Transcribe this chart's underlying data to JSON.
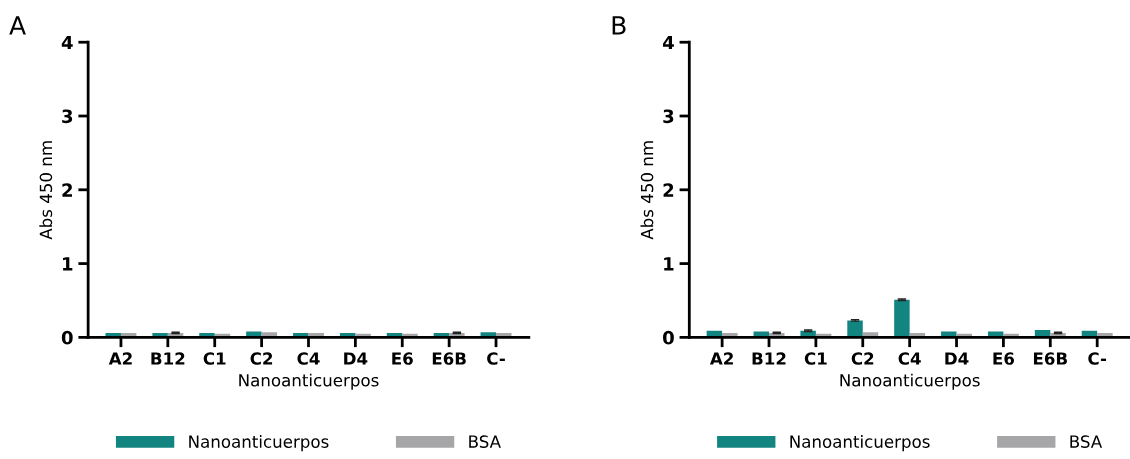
{
  "chart_data": [
    {
      "type": "bar",
      "annotations": [
        "A"
      ],
      "xlabel": "Nanoanticuerpos",
      "ylabel": "Abs 450 nm",
      "categories": [
        "A2",
        "B12",
        "C1",
        "C2",
        "C4",
        "D4",
        "E6",
        "E6B",
        "C-"
      ],
      "series": [
        {
          "name": "Nanoanticuerpos",
          "color": "#138581",
          "values": [
            0.06,
            0.06,
            0.06,
            0.08,
            0.06,
            0.06,
            0.06,
            0.06,
            0.07
          ]
        },
        {
          "name": "BSA",
          "color": "#a6a6a8",
          "values": [
            0.06,
            0.06,
            0.05,
            0.07,
            0.06,
            0.05,
            0.05,
            0.06,
            0.06
          ],
          "errors": [
            null,
            0.01,
            null,
            null,
            null,
            null,
            null,
            0.01,
            null
          ]
        }
      ],
      "ylim": [
        0,
        4
      ],
      "yticks": [
        0,
        1,
        2,
        3,
        4
      ],
      "grid": false,
      "legend": "bottom"
    },
    {
      "type": "bar",
      "annotations": [
        "B"
      ],
      "xlabel": "Nanoanticuerpos",
      "ylabel": "Abs 450 nm",
      "categories": [
        "A2",
        "B12",
        "C1",
        "C2",
        "C4",
        "D4",
        "E6",
        "E6B",
        "C-"
      ],
      "series": [
        {
          "name": "Nanoanticuerpos",
          "color": "#138581",
          "values": [
            0.09,
            0.08,
            0.09,
            0.23,
            0.51,
            0.08,
            0.08,
            0.1,
            0.09
          ],
          "errors": [
            null,
            null,
            0.01,
            0.01,
            0.01,
            null,
            null,
            null,
            null
          ]
        },
        {
          "name": "BSA",
          "color": "#a6a6a8",
          "values": [
            0.06,
            0.06,
            0.05,
            0.07,
            0.06,
            0.05,
            0.05,
            0.06,
            0.06
          ],
          "errors": [
            null,
            0.01,
            null,
            null,
            null,
            null,
            null,
            0.01,
            null
          ]
        }
      ],
      "ylim": [
        0,
        4
      ],
      "yticks": [
        0,
        1,
        2,
        3,
        4
      ],
      "grid": false,
      "legend": "bottom"
    }
  ]
}
